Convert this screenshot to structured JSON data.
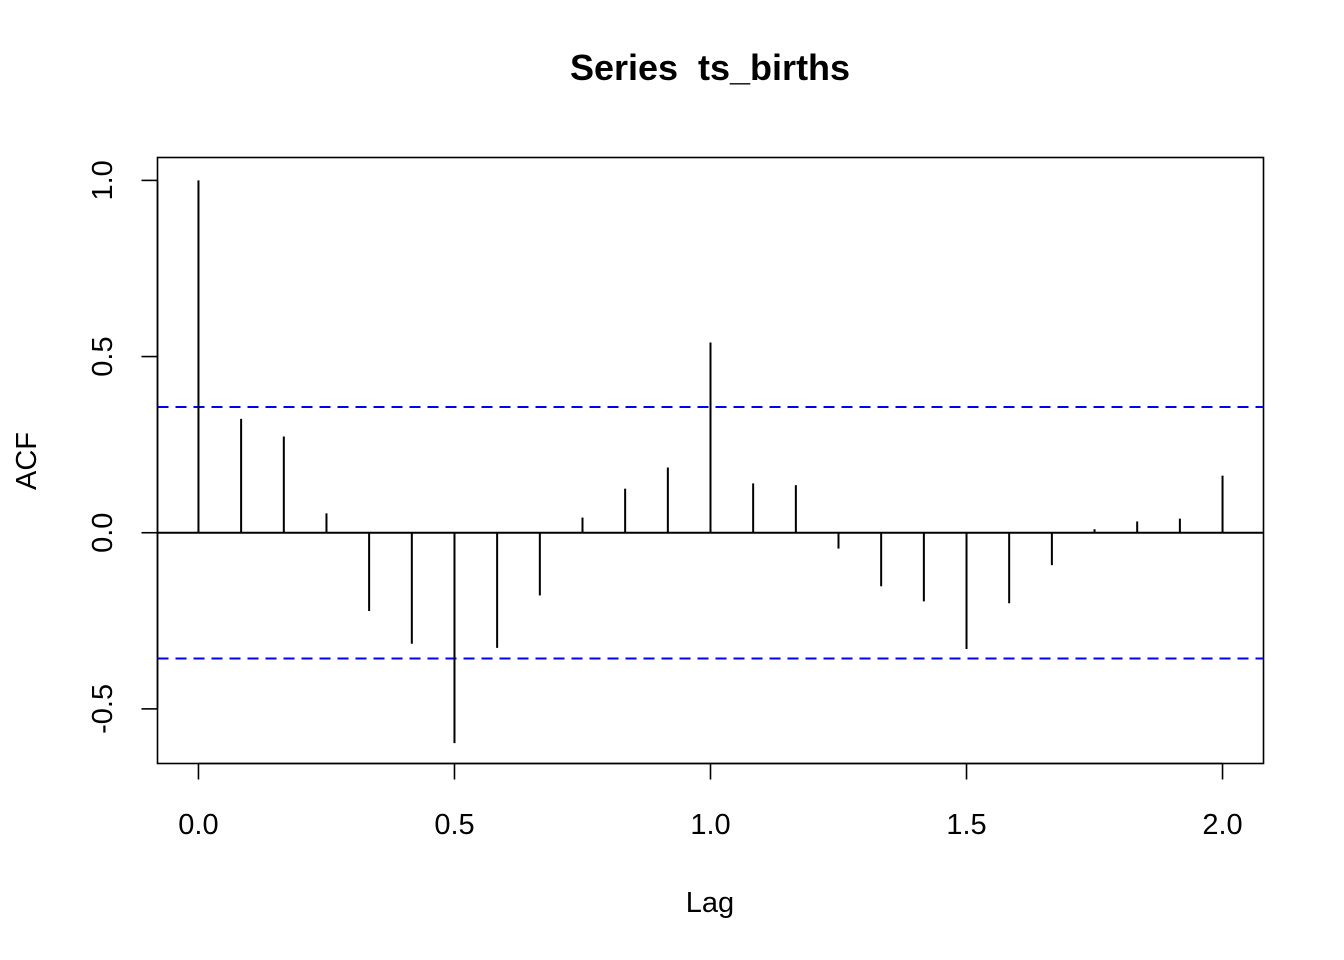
{
  "chart_data": {
    "type": "bar",
    "title": "Series  ts_births",
    "xlabel": "Lag",
    "ylabel": "ACF",
    "xlim": [
      -0.08,
      2.08
    ],
    "ylim": [
      -0.655,
      1.065
    ],
    "xticks": [
      0.0,
      0.5,
      1.0,
      1.5,
      2.0
    ],
    "xtick_labels": [
      "0.0",
      "0.5",
      "1.0",
      "1.5",
      "2.0"
    ],
    "yticks": [
      -0.5,
      0.0,
      0.5,
      1.0
    ],
    "ytick_labels": [
      "-0.5",
      "0.0",
      "0.5",
      "1.0"
    ],
    "lags": [
      0.0,
      0.0833,
      0.1667,
      0.25,
      0.3333,
      0.4167,
      0.5,
      0.5833,
      0.6667,
      0.75,
      0.8333,
      0.9167,
      1.0,
      1.0833,
      1.1667,
      1.25,
      1.3333,
      1.4167,
      1.5,
      1.5833,
      1.6667,
      1.75,
      1.8333,
      1.9167,
      2.0
    ],
    "acf": [
      1.0,
      0.323,
      0.273,
      0.055,
      -0.222,
      -0.315,
      -0.597,
      -0.327,
      -0.178,
      0.043,
      0.125,
      0.185,
      0.54,
      0.14,
      0.135,
      -0.045,
      -0.152,
      -0.195,
      -0.33,
      -0.2,
      -0.092,
      0.01,
      0.032,
      0.04,
      0.162
    ],
    "conf_bound": 0.357,
    "conf_color": "#0000ff",
    "bar_color": "#000000",
    "grid": false,
    "legend": "none"
  }
}
